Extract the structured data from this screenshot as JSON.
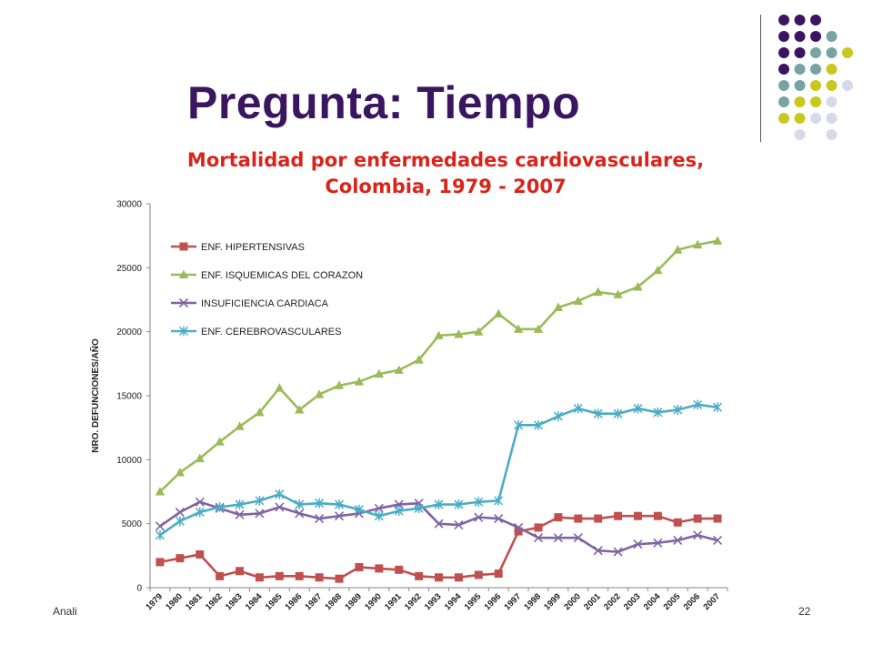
{
  "slide": {
    "title": "Pregunta: Tiempo",
    "footer_left": "Anali",
    "page_number": "22"
  },
  "decor": {
    "colors": {
      "purple": "#3b1660",
      "teal": "#78a3a3",
      "lime": "#c8c820",
      "lavender": "#d8d8ec"
    },
    "dot_grid": [
      [
        "purple",
        "purple",
        "purple",
        null
      ],
      [
        "purple",
        "purple",
        "purple",
        "teal"
      ],
      [
        "purple",
        "purple",
        "teal",
        "teal",
        "lime"
      ],
      [
        "purple",
        "teal",
        "teal",
        "lime",
        null
      ],
      [
        "teal",
        "teal",
        "lime",
        "lime",
        "lavender"
      ],
      [
        "teal",
        "lime",
        "lime",
        "lavender",
        null
      ],
      [
        "lime",
        "lime",
        "lavender",
        "lavender"
      ],
      [
        null,
        "lavender",
        null,
        "lavender"
      ]
    ]
  },
  "chart_data": {
    "type": "line",
    "title_lines": [
      "Mortalidad por enfermedades cardiovasculares,",
      "Colombia, 1979 - 2007"
    ],
    "ylabel": "NRO. DEFUNCIONES/AÑO",
    "xlabel": "",
    "ylim": [
      0,
      30000
    ],
    "yticks": [
      0,
      5000,
      10000,
      15000,
      20000,
      25000,
      30000
    ],
    "grid": false,
    "legend_position": "top-left",
    "categories": [
      "1979",
      "1980",
      "1981",
      "1982",
      "1983",
      "1984",
      "1985",
      "1986",
      "1987",
      "1988",
      "1989",
      "1990",
      "1991",
      "1992",
      "1993",
      "1994",
      "1995",
      "1996",
      "1997",
      "1998",
      "1999",
      "2000",
      "2001",
      "2002",
      "2003",
      "2004",
      "2005",
      "2006",
      "2007"
    ],
    "series": [
      {
        "name": "ENF. HIPERTENSIVAS",
        "color": "#c0504d",
        "marker": "square",
        "values": [
          2000,
          2300,
          2600,
          900,
          1300,
          800,
          900,
          900,
          800,
          700,
          1600,
          1500,
          1400,
          900,
          800,
          800,
          1000,
          1100,
          4400,
          4700,
          5500,
          5400,
          5400,
          5600,
          5600,
          5600,
          5100,
          5400,
          5400
        ]
      },
      {
        "name": "ENF. ISQUEMICAS DEL CORAZON",
        "color": "#9bbb59",
        "marker": "triangle",
        "values": [
          7500,
          9000,
          10100,
          11400,
          12600,
          13700,
          15600,
          13900,
          15100,
          15800,
          16100,
          16700,
          17000,
          17800,
          19700,
          19800,
          20000,
          21400,
          20200,
          20200,
          21900,
          22400,
          23100,
          22900,
          23500,
          24800,
          26400,
          26800,
          27100
        ]
      },
      {
        "name": "INSUFICIENCIA CARDIACA",
        "color": "#8064a2",
        "marker": "x",
        "values": [
          4800,
          5900,
          6700,
          6200,
          5700,
          5800,
          6300,
          5800,
          5400,
          5600,
          5800,
          6200,
          6500,
          6600,
          5000,
          4900,
          5500,
          5400,
          4700,
          3900,
          3900,
          3900,
          2900,
          2800,
          3400,
          3500,
          3700,
          4100,
          3700
        ]
      },
      {
        "name": "ENF. CEREBROVASCULARES",
        "color": "#4bacc6",
        "marker": "star",
        "values": [
          4100,
          5200,
          5900,
          6300,
          6500,
          6800,
          7300,
          6500,
          6600,
          6500,
          6100,
          5600,
          6000,
          6200,
          6500,
          6500,
          6700,
          6800,
          12700,
          12700,
          13400,
          14000,
          13600,
          13600,
          14000,
          13700,
          13900,
          14300,
          14100
        ]
      }
    ]
  }
}
